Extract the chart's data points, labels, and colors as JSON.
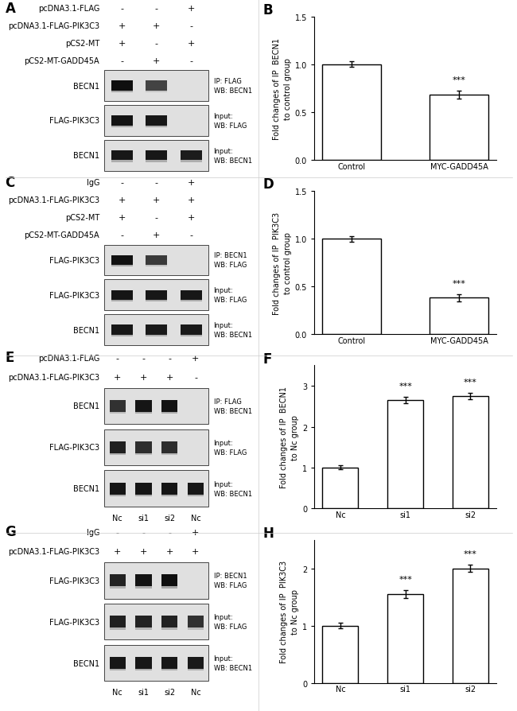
{
  "panel_A": {
    "label": "A",
    "rows": [
      "pcDNA3.1-FLAG",
      "pcDNA3.1-FLAG-PIK3C3",
      "pCS2-MT",
      "pCS2-MT-GADD45A"
    ],
    "col_signs": [
      [
        "-",
        "-",
        "+"
      ],
      [
        "+",
        "+",
        "-"
      ],
      [
        "+",
        "-",
        "+"
      ],
      [
        "-",
        "+",
        "-"
      ]
    ],
    "blot_labels": [
      "BECN1",
      "FLAG-PIK3C3",
      "BECN1"
    ],
    "blot_notes": [
      "IP: FLAG\nWB: BECN1",
      "Input:\nWB: FLAG",
      "Input:\nWB: BECN1"
    ],
    "band_patterns": [
      [
        [
          0,
          0.95
        ],
        [
          1,
          0.35
        ],
        [
          2,
          0.0
        ]
      ],
      [
        [
          0,
          0.9
        ],
        [
          1,
          0.85
        ],
        [
          2,
          0.0
        ]
      ],
      [
        [
          0,
          0.85
        ],
        [
          1,
          0.85
        ],
        [
          2,
          0.8
        ]
      ]
    ],
    "n_cols": 3,
    "n_header_rows": 4,
    "col_xlabels": null
  },
  "panel_B": {
    "label": "B",
    "ylabel": "Fold changes of IP  BECN1\nto control group",
    "categories": [
      "Control",
      "MYC-GADD45A"
    ],
    "values": [
      1.0,
      0.68
    ],
    "errors": [
      0.03,
      0.04
    ],
    "sig": [
      "",
      "***"
    ],
    "ylim": [
      0,
      1.5
    ],
    "yticks": [
      0.0,
      0.5,
      1.0,
      1.5
    ]
  },
  "panel_C": {
    "label": "C",
    "rows": [
      "IgG",
      "pcDNA3.1-FLAG-PIK3C3",
      "pCS2-MT",
      "pCS2-MT-GADD45A"
    ],
    "col_signs": [
      [
        "-",
        "-",
        "+"
      ],
      [
        "+",
        "+",
        "+"
      ],
      [
        "+",
        "-",
        "+"
      ],
      [
        "-",
        "+",
        "-"
      ]
    ],
    "blot_labels": [
      "FLAG-PIK3C3",
      "FLAG-PIK3C3",
      "BECN1"
    ],
    "blot_notes": [
      "IP: BECN1\nWB: FLAG",
      "Input:\nWB: FLAG",
      "Input:\nWB: BECN1"
    ],
    "band_patterns": [
      [
        [
          0,
          0.92
        ],
        [
          1,
          0.45
        ],
        [
          2,
          0.0
        ]
      ],
      [
        [
          0,
          0.88
        ],
        [
          1,
          0.85
        ],
        [
          2,
          0.85
        ]
      ],
      [
        [
          0,
          0.85
        ],
        [
          1,
          0.82
        ],
        [
          2,
          0.83
        ]
      ]
    ],
    "n_cols": 3,
    "n_header_rows": 4,
    "col_xlabels": null
  },
  "panel_D": {
    "label": "D",
    "ylabel": "Fold changes of IP  PIK3C3\nto control group",
    "categories": [
      "Control",
      "MYC-GADD45A"
    ],
    "values": [
      1.0,
      0.38
    ],
    "errors": [
      0.03,
      0.04
    ],
    "sig": [
      "",
      "***"
    ],
    "ylim": [
      0,
      1.5
    ],
    "yticks": [
      0.0,
      0.5,
      1.0,
      1.5
    ]
  },
  "panel_E": {
    "label": "E",
    "rows": [
      "pcDNA3.1-FLAG",
      "pcDNA3.1-FLAG-PIK3C3"
    ],
    "col_signs": [
      [
        "-",
        "-",
        "-",
        "+"
      ],
      [
        "+",
        "+",
        "+",
        "-"
      ]
    ],
    "blot_labels": [
      "BECN1",
      "FLAG-PIK3C3",
      "BECN1"
    ],
    "blot_notes": [
      "IP: FLAG\nWB: BECN1",
      "Input:\nWB: FLAG",
      "Input:\nWB: BECN1"
    ],
    "band_patterns": [
      [
        [
          0,
          0.55
        ],
        [
          1,
          0.88
        ],
        [
          2,
          0.9
        ],
        [
          3,
          0.0
        ]
      ],
      [
        [
          0,
          0.75
        ],
        [
          1,
          0.6
        ],
        [
          2,
          0.6
        ],
        [
          3,
          0.0
        ]
      ],
      [
        [
          0,
          0.88
        ],
        [
          1,
          0.88
        ],
        [
          2,
          0.88
        ],
        [
          3,
          0.85
        ]
      ]
    ],
    "n_cols": 4,
    "n_header_rows": 2,
    "col_xlabels": [
      "Nc",
      "si1",
      "si2",
      "Nc"
    ]
  },
  "panel_F": {
    "label": "F",
    "ylabel": "Fold changes of IP  BECN1\nto Nc group",
    "categories": [
      "Nc",
      "si1",
      "si2"
    ],
    "values": [
      1.0,
      2.65,
      2.75
    ],
    "errors": [
      0.05,
      0.08,
      0.07
    ],
    "sig": [
      "",
      "***",
      "***"
    ],
    "ylim": [
      0,
      3.5
    ],
    "yticks": [
      0,
      1,
      2,
      3
    ]
  },
  "panel_G": {
    "label": "G",
    "rows": [
      "IgG",
      "pcDNA3.1-FLAG-PIK3C3"
    ],
    "col_signs": [
      [
        "-",
        "-",
        "-",
        "+"
      ],
      [
        "+",
        "+",
        "+",
        "+"
      ]
    ],
    "blot_labels": [
      "FLAG-PIK3C3",
      "FLAG-PIK3C3",
      "BECN1"
    ],
    "blot_notes": [
      "IP: BECN1\nWB: FLAG",
      "Input:\nWB: FLAG",
      "Input:\nWB: BECN1"
    ],
    "band_patterns": [
      [
        [
          0,
          0.72
        ],
        [
          1,
          0.9
        ],
        [
          2,
          0.95
        ],
        [
          3,
          0.0
        ]
      ],
      [
        [
          0,
          0.75
        ],
        [
          1,
          0.72
        ],
        [
          2,
          0.72
        ],
        [
          3,
          0.55
        ]
      ],
      [
        [
          0,
          0.85
        ],
        [
          1,
          0.85
        ],
        [
          2,
          0.85
        ],
        [
          3,
          0.83
        ]
      ]
    ],
    "n_cols": 4,
    "n_header_rows": 2,
    "col_xlabels": [
      "Nc",
      "si1",
      "si2",
      "Nc"
    ]
  },
  "panel_H": {
    "label": "H",
    "ylabel": "Fold changes of IP  PIK3C3\nto Nc group",
    "categories": [
      "Nc",
      "si1",
      "si2"
    ],
    "values": [
      1.0,
      1.55,
      2.0
    ],
    "errors": [
      0.05,
      0.07,
      0.06
    ],
    "sig": [
      "",
      "***",
      "***"
    ],
    "ylim": [
      0,
      2.5
    ],
    "yticks": [
      0,
      1,
      2
    ]
  },
  "bar_color": "#ffffff",
  "bar_edge": "#000000",
  "font_size": 7,
  "label_font_size": 12,
  "divider_color": "#cccccc"
}
